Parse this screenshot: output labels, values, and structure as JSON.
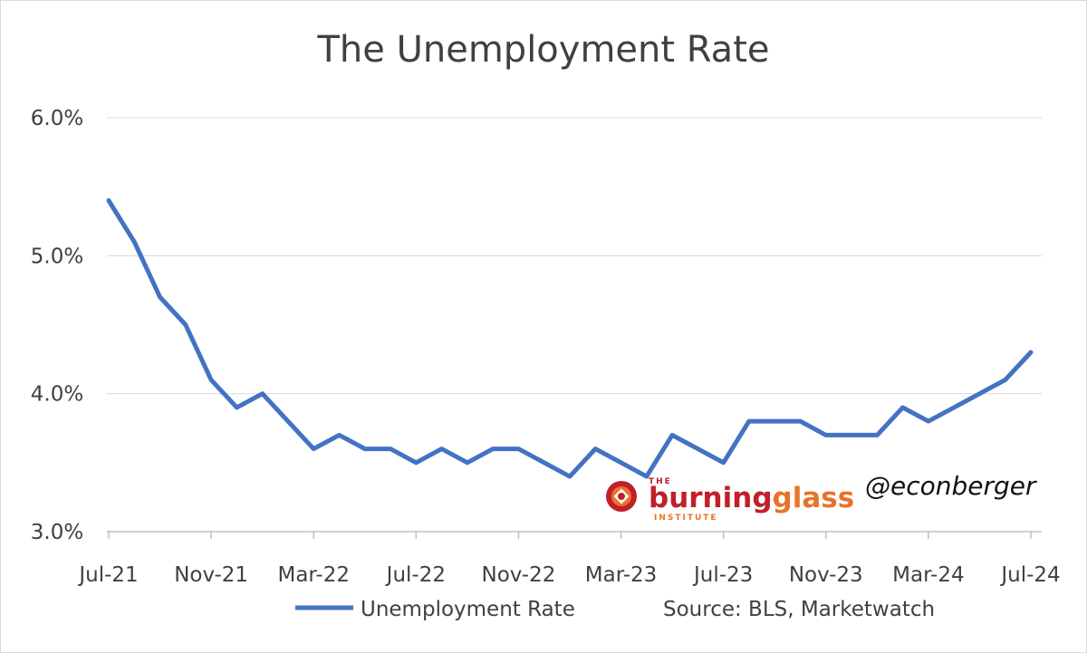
{
  "chart_data": {
    "type": "line",
    "title": "The Unemployment Rate",
    "xlabel": "",
    "ylabel": "",
    "ylim": [
      3.0,
      6.0
    ],
    "yticks": [
      "3.0%",
      "4.0%",
      "5.0%",
      "6.0%"
    ],
    "ytick_values": [
      3.0,
      4.0,
      5.0,
      6.0
    ],
    "xtick_labels": [
      "Jul-21",
      "Nov-21",
      "Mar-22",
      "Jul-22",
      "Nov-22",
      "Mar-23",
      "Jul-23",
      "Nov-23",
      "Mar-24",
      "Jul-24"
    ],
    "grid": "horizontal",
    "legend": "bottom",
    "x": [
      "Jul-21",
      "Aug-21",
      "Sep-21",
      "Oct-21",
      "Nov-21",
      "Dec-21",
      "Jan-22",
      "Feb-22",
      "Mar-22",
      "Apr-22",
      "May-22",
      "Jun-22",
      "Jul-22",
      "Aug-22",
      "Sep-22",
      "Oct-22",
      "Nov-22",
      "Dec-22",
      "Jan-23",
      "Feb-23",
      "Mar-23",
      "Apr-23",
      "May-23",
      "Jun-23",
      "Jul-23",
      "Aug-23",
      "Sep-23",
      "Oct-23",
      "Nov-23",
      "Dec-23",
      "Jan-24",
      "Feb-24",
      "Mar-24",
      "Apr-24",
      "May-24",
      "Jun-24",
      "Jul-24"
    ],
    "series": [
      {
        "name": "Unemployment Rate",
        "color": "#4472c4",
        "values": [
          5.4,
          5.1,
          4.7,
          4.5,
          4.1,
          3.9,
          4.0,
          3.8,
          3.6,
          3.7,
          3.6,
          3.6,
          3.5,
          3.6,
          3.5,
          3.6,
          3.6,
          3.5,
          3.4,
          3.6,
          3.5,
          3.4,
          3.7,
          3.6,
          3.5,
          3.8,
          3.8,
          3.8,
          3.7,
          3.7,
          3.7,
          3.9,
          3.8,
          3.9,
          4.0,
          4.1,
          4.3
        ]
      }
    ],
    "source": "Source: BLS, Marketwatch",
    "handle": "@econberger",
    "logo": {
      "the": "THE",
      "word1": "burning",
      "word2": "glass",
      "sub": "INSTITUTE",
      "color1": "#c0202b",
      "color2": "#e8722a"
    }
  }
}
